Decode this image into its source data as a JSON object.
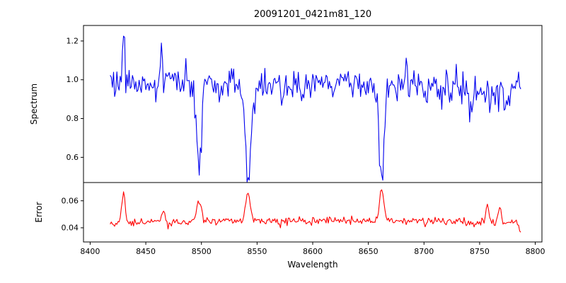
{
  "chart_data": {
    "type": "line",
    "title": "20091201_0421m81_120",
    "xlabel": "Wavelength",
    "xlim": [
      8394,
      8806
    ],
    "x_data_range": [
      8418,
      8787
    ],
    "x_step": 1,
    "xticks": [
      8400,
      8450,
      8500,
      8550,
      8600,
      8650,
      8700,
      8750,
      8800
    ],
    "xtick_labels": [
      "8400",
      "8450",
      "8500",
      "8550",
      "8600",
      "8650",
      "8700",
      "8750",
      "8800"
    ],
    "grid": false,
    "seed": 9,
    "panels": [
      {
        "name": "spectrum",
        "ylabel": "Spectrum",
        "color": "#0000ee",
        "ylim": [
          0.47,
          1.28
        ],
        "yticks": [
          0.6,
          0.8,
          1.0,
          1.2
        ],
        "ytick_labels": [
          "0.6",
          "0.8",
          "1.0",
          "1.2"
        ],
        "baseline": 0.975,
        "noise_sigma": 0.045,
        "absorption_line_centers": [
          8498,
          8542,
          8662
        ],
        "features": [
          {
            "c": 8430,
            "a": 0.27,
            "s": 1.0
          },
          {
            "c": 8464,
            "a": 0.17,
            "s": 1.0
          },
          {
            "c": 8498,
            "a": -0.43,
            "s": 2.0
          },
          {
            "c": 8542,
            "a": -0.51,
            "s": 2.6
          },
          {
            "c": 8662,
            "a": -0.49,
            "s": 2.3
          },
          {
            "c": 8684,
            "a": 0.1,
            "s": 1.0
          },
          {
            "c": 8729,
            "a": 0.1,
            "s": 1.0
          },
          {
            "c": 8755,
            "a": -0.05,
            "s": 25
          },
          {
            "c": 8775,
            "a": -0.12,
            "s": 1.2
          }
        ]
      },
      {
        "name": "error",
        "ylabel": "Error",
        "color": "#ff0000",
        "ylim": [
          0.0295,
          0.0735
        ],
        "yticks": [
          0.04,
          0.06
        ],
        "ytick_labels": [
          "0.04",
          "0.06"
        ],
        "baseline": 0.0435,
        "noise_sigma": 0.0015,
        "features": [
          {
            "c": 8430,
            "a": 0.022,
            "s": 1.5
          },
          {
            "c": 8466,
            "a": 0.008,
            "s": 1.5
          },
          {
            "c": 8498,
            "a": 0.016,
            "s": 2.0
          },
          {
            "c": 8542,
            "a": 0.021,
            "s": 2.2
          },
          {
            "c": 8600,
            "a": 0.002,
            "s": 90
          },
          {
            "c": 8662,
            "a": 0.022,
            "s": 2.0
          },
          {
            "c": 8757,
            "a": 0.013,
            "s": 1.5
          },
          {
            "c": 8768,
            "a": 0.011,
            "s": 1.5
          },
          {
            "c": 8787,
            "a": -0.007,
            "s": 1.5
          }
        ]
      }
    ]
  }
}
